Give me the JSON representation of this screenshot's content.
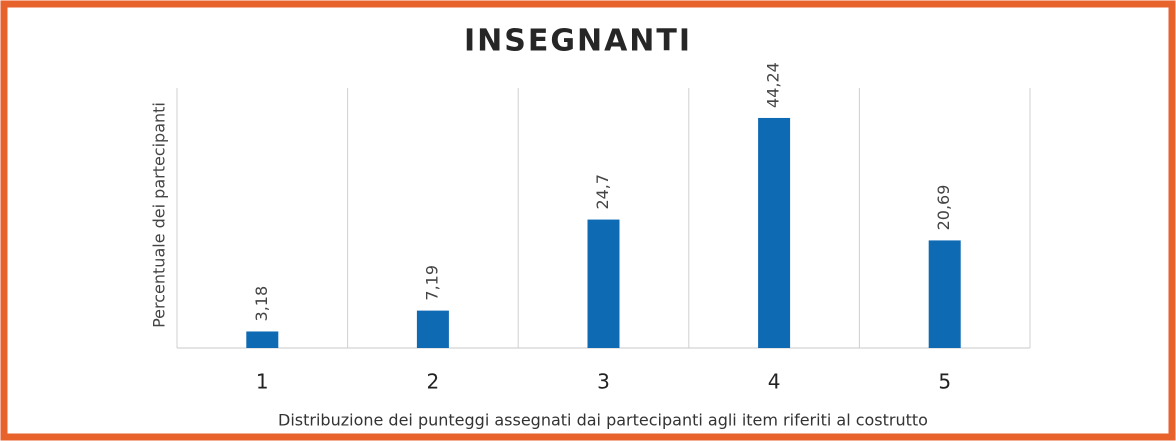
{
  "chart_data": {
    "type": "bar",
    "title": "INSEGNANTI",
    "x_label": "Distribuzione dei punteggi assegnati dai partecipanti agli item riferiti al costrutto",
    "y_label": "Percentuale dei partecipanti",
    "categories": [
      "1",
      "2",
      "3",
      "4",
      "5"
    ],
    "values": [
      3.18,
      7.19,
      24.7,
      44.24,
      20.69
    ],
    "value_labels": [
      "3,18",
      "7,19",
      "24,7",
      "44,24",
      "20,69"
    ],
    "color": "#0f6ab4",
    "ylim": [
      0,
      50
    ]
  }
}
